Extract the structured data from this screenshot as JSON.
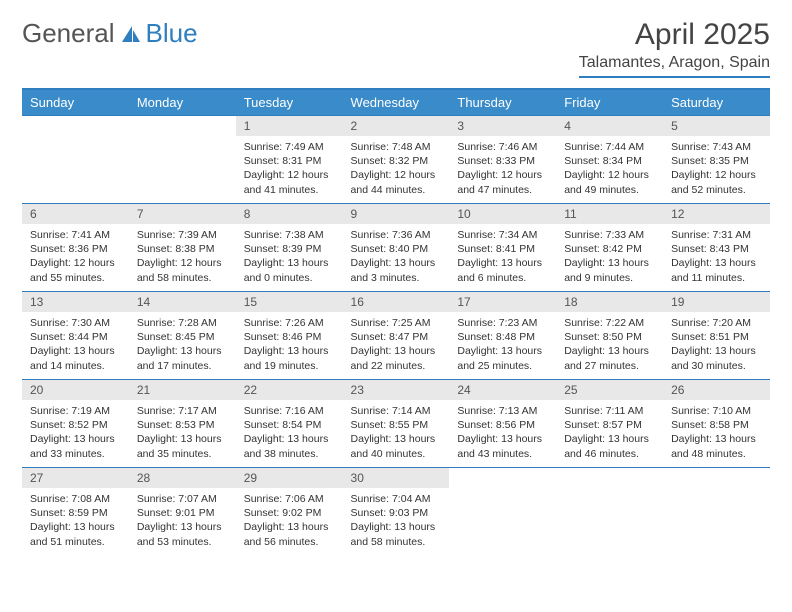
{
  "logo": {
    "part1": "General",
    "part2": "Blue"
  },
  "title": "April 2025",
  "location": "Talamantes, Aragon, Spain",
  "colors": {
    "header_bg": "#3a8bc9",
    "header_fg": "#ffffff",
    "rule": "#2f7fc0",
    "daynum_bg": "#e8e8e8",
    "text": "#333333"
  },
  "dow": [
    "Sunday",
    "Monday",
    "Tuesday",
    "Wednesday",
    "Thursday",
    "Friday",
    "Saturday"
  ],
  "weeks": [
    [
      null,
      null,
      {
        "n": "1",
        "sr": "7:49 AM",
        "ss": "8:31 PM",
        "dl": "12 hours and 41 minutes."
      },
      {
        "n": "2",
        "sr": "7:48 AM",
        "ss": "8:32 PM",
        "dl": "12 hours and 44 minutes."
      },
      {
        "n": "3",
        "sr": "7:46 AM",
        "ss": "8:33 PM",
        "dl": "12 hours and 47 minutes."
      },
      {
        "n": "4",
        "sr": "7:44 AM",
        "ss": "8:34 PM",
        "dl": "12 hours and 49 minutes."
      },
      {
        "n": "5",
        "sr": "7:43 AM",
        "ss": "8:35 PM",
        "dl": "12 hours and 52 minutes."
      }
    ],
    [
      {
        "n": "6",
        "sr": "7:41 AM",
        "ss": "8:36 PM",
        "dl": "12 hours and 55 minutes."
      },
      {
        "n": "7",
        "sr": "7:39 AM",
        "ss": "8:38 PM",
        "dl": "12 hours and 58 minutes."
      },
      {
        "n": "8",
        "sr": "7:38 AM",
        "ss": "8:39 PM",
        "dl": "13 hours and 0 minutes."
      },
      {
        "n": "9",
        "sr": "7:36 AM",
        "ss": "8:40 PM",
        "dl": "13 hours and 3 minutes."
      },
      {
        "n": "10",
        "sr": "7:34 AM",
        "ss": "8:41 PM",
        "dl": "13 hours and 6 minutes."
      },
      {
        "n": "11",
        "sr": "7:33 AM",
        "ss": "8:42 PM",
        "dl": "13 hours and 9 minutes."
      },
      {
        "n": "12",
        "sr": "7:31 AM",
        "ss": "8:43 PM",
        "dl": "13 hours and 11 minutes."
      }
    ],
    [
      {
        "n": "13",
        "sr": "7:30 AM",
        "ss": "8:44 PM",
        "dl": "13 hours and 14 minutes."
      },
      {
        "n": "14",
        "sr": "7:28 AM",
        "ss": "8:45 PM",
        "dl": "13 hours and 17 minutes."
      },
      {
        "n": "15",
        "sr": "7:26 AM",
        "ss": "8:46 PM",
        "dl": "13 hours and 19 minutes."
      },
      {
        "n": "16",
        "sr": "7:25 AM",
        "ss": "8:47 PM",
        "dl": "13 hours and 22 minutes."
      },
      {
        "n": "17",
        "sr": "7:23 AM",
        "ss": "8:48 PM",
        "dl": "13 hours and 25 minutes."
      },
      {
        "n": "18",
        "sr": "7:22 AM",
        "ss": "8:50 PM",
        "dl": "13 hours and 27 minutes."
      },
      {
        "n": "19",
        "sr": "7:20 AM",
        "ss": "8:51 PM",
        "dl": "13 hours and 30 minutes."
      }
    ],
    [
      {
        "n": "20",
        "sr": "7:19 AM",
        "ss": "8:52 PM",
        "dl": "13 hours and 33 minutes."
      },
      {
        "n": "21",
        "sr": "7:17 AM",
        "ss": "8:53 PM",
        "dl": "13 hours and 35 minutes."
      },
      {
        "n": "22",
        "sr": "7:16 AM",
        "ss": "8:54 PM",
        "dl": "13 hours and 38 minutes."
      },
      {
        "n": "23",
        "sr": "7:14 AM",
        "ss": "8:55 PM",
        "dl": "13 hours and 40 minutes."
      },
      {
        "n": "24",
        "sr": "7:13 AM",
        "ss": "8:56 PM",
        "dl": "13 hours and 43 minutes."
      },
      {
        "n": "25",
        "sr": "7:11 AM",
        "ss": "8:57 PM",
        "dl": "13 hours and 46 minutes."
      },
      {
        "n": "26",
        "sr": "7:10 AM",
        "ss": "8:58 PM",
        "dl": "13 hours and 48 minutes."
      }
    ],
    [
      {
        "n": "27",
        "sr": "7:08 AM",
        "ss": "8:59 PM",
        "dl": "13 hours and 51 minutes."
      },
      {
        "n": "28",
        "sr": "7:07 AM",
        "ss": "9:01 PM",
        "dl": "13 hours and 53 minutes."
      },
      {
        "n": "29",
        "sr": "7:06 AM",
        "ss": "9:02 PM",
        "dl": "13 hours and 56 minutes."
      },
      {
        "n": "30",
        "sr": "7:04 AM",
        "ss": "9:03 PM",
        "dl": "13 hours and 58 minutes."
      },
      null,
      null,
      null
    ]
  ],
  "labels": {
    "sunrise": "Sunrise: ",
    "sunset": "Sunset: ",
    "daylight": "Daylight: "
  }
}
